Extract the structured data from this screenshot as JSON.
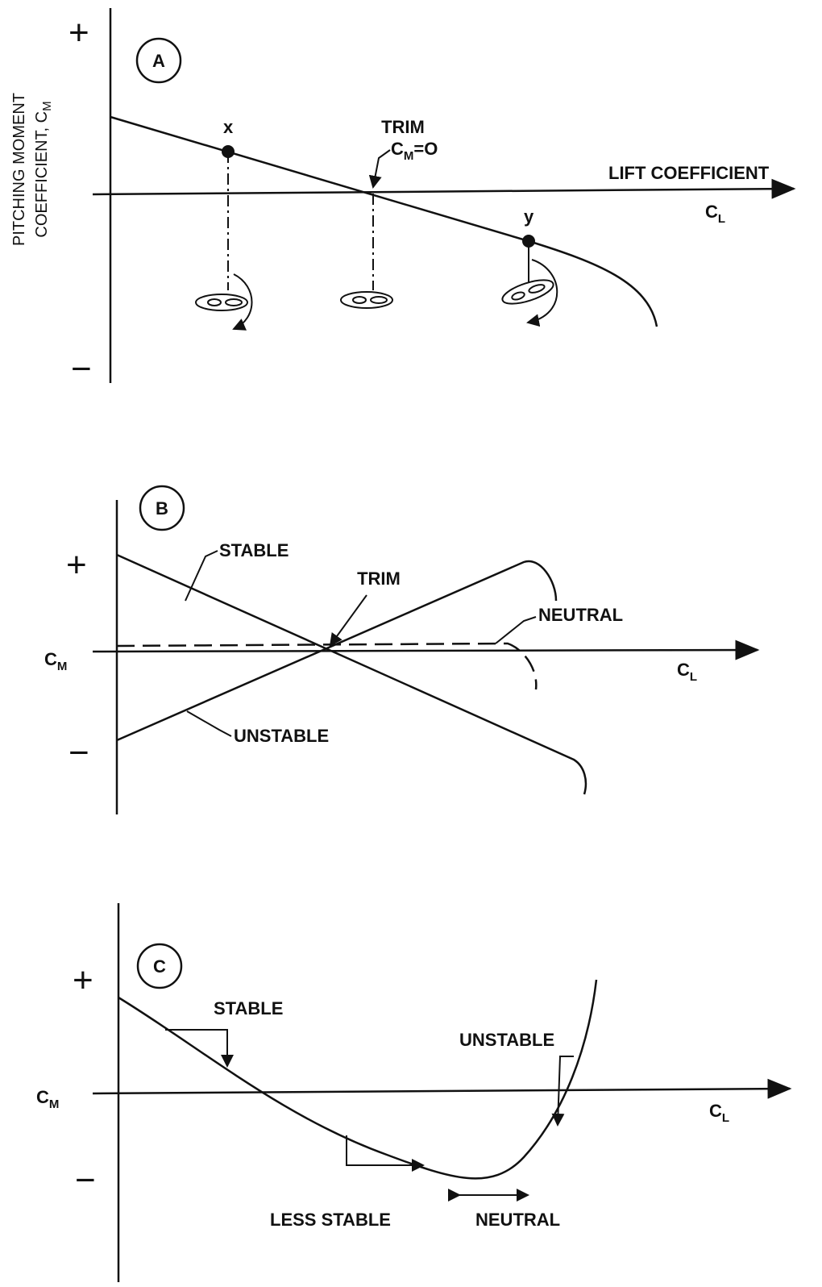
{
  "panels": [
    {
      "label": "A",
      "plus": "+",
      "minus": "−",
      "y_axis_label": {
        "line1": "PITCHING MOMENT",
        "line2": "COEFFICIENT, C",
        "sub": "M"
      },
      "x_axis_label": "LIFT COEFFICIENT",
      "x_symbol": {
        "main": "C",
        "sub": "L"
      },
      "point_x": "x",
      "point_y": "y",
      "trim": {
        "title": "TRIM",
        "main": "C",
        "sub": "M",
        "rest": "=O"
      }
    },
    {
      "label": "B",
      "plus": "+",
      "minus": "−",
      "y_symbol": {
        "main": "C",
        "sub": "M"
      },
      "x_symbol": {
        "main": "C",
        "sub": "L"
      },
      "stable": "STABLE",
      "trim": "TRIM",
      "neutral": "NEUTRAL",
      "unstable": "UNSTABLE"
    },
    {
      "label": "C",
      "plus": "+",
      "minus": "−",
      "y_symbol": {
        "main": "C",
        "sub": "M"
      },
      "x_symbol": {
        "main": "C",
        "sub": "L"
      },
      "stable": "STABLE",
      "unstable": "UNSTABLE",
      "less_stable": "LESS STABLE",
      "neutral": "NEUTRAL"
    }
  ]
}
